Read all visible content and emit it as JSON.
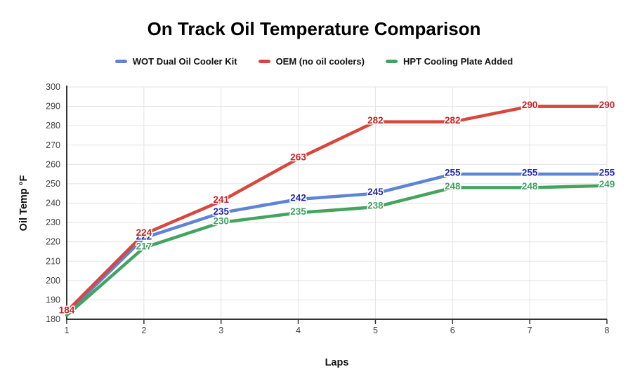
{
  "title": "On Track Oil Temperature Comparison",
  "chart_data": {
    "type": "line",
    "x": [
      1,
      2,
      3,
      4,
      5,
      6,
      7,
      8
    ],
    "xlabel": "Laps",
    "ylabel": "Oil Temp °F",
    "ylim": [
      180,
      300
    ],
    "ytick_step": 10,
    "xticks": [
      "1",
      "2",
      "3",
      "4",
      "5",
      "6",
      "7",
      "8"
    ],
    "grid": true,
    "legend_position": "top",
    "series": [
      {
        "name": "WOT Dual Oil Cooler Kit",
        "color": "#5c85d6",
        "label_color": "#2028a5",
        "values": [
          183,
          222,
          235,
          242,
          245,
          255,
          255,
          255
        ],
        "labels": [
          null,
          "222",
          "235",
          "242",
          "245",
          "255",
          "255",
          "255"
        ]
      },
      {
        "name": "OEM (no oil coolers)",
        "color": "#d8473c",
        "label_color": "#c62222",
        "values": [
          184,
          224,
          241,
          263,
          282,
          282,
          290,
          290
        ],
        "labels": [
          "184",
          "224",
          "241",
          "263",
          "282",
          "282",
          "290",
          "290"
        ]
      },
      {
        "name": "HPT Cooling Plate Added",
        "color": "#44a35e",
        "label_color": "#42a061",
        "values": [
          182,
          217,
          230,
          235,
          238,
          248,
          248,
          249
        ],
        "labels": [
          null,
          "217",
          "230",
          "235",
          "238",
          "248",
          "248",
          "249"
        ]
      }
    ],
    "colors": {
      "grid": "#e3e3e3",
      "axis": "#333333",
      "tick_text": "#424242",
      "axis_title_text": "#111111",
      "label_halo": "#ffffff"
    }
  }
}
